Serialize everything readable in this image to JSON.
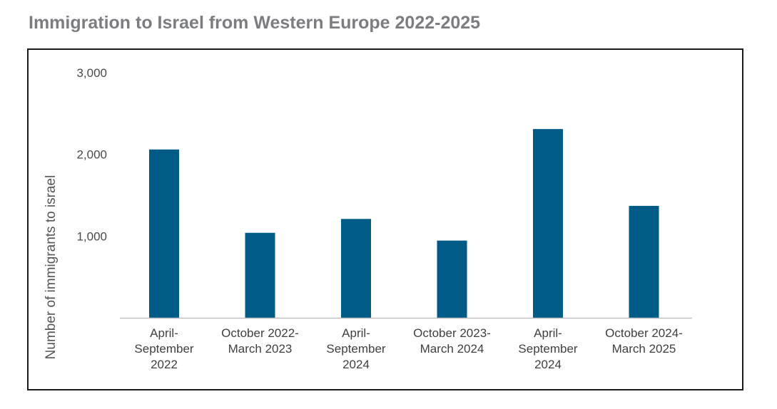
{
  "title": "Immigration to Israel from Western Europe 2022-2025",
  "chart_data": {
    "type": "bar",
    "title": "Immigration to Israel from Western Europe 2022-2025",
    "categories": [
      [
        "April-",
        "September",
        "2022"
      ],
      [
        "October 2022-",
        "March 2023"
      ],
      [
        "April-",
        "September",
        "2024"
      ],
      [
        "October 2023-",
        "March 2024"
      ],
      [
        "April-",
        "September",
        "2024"
      ],
      [
        "October 2024-",
        "March 2025"
      ]
    ],
    "values": [
      2060,
      1040,
      1210,
      945,
      2310,
      1370
    ],
    "xlabel": "",
    "ylabel": "Number of immigrants to israel",
    "ylim": [
      0,
      3000
    ],
    "yticks": [
      {
        "value": 1000,
        "label": "1,000"
      },
      {
        "value": 2000,
        "label": "2,000"
      },
      {
        "value": 3000,
        "label": "3,000"
      }
    ],
    "grid": false,
    "legend": "none",
    "bar_color": "#005b87",
    "axis_color": "#bfbfbf"
  }
}
